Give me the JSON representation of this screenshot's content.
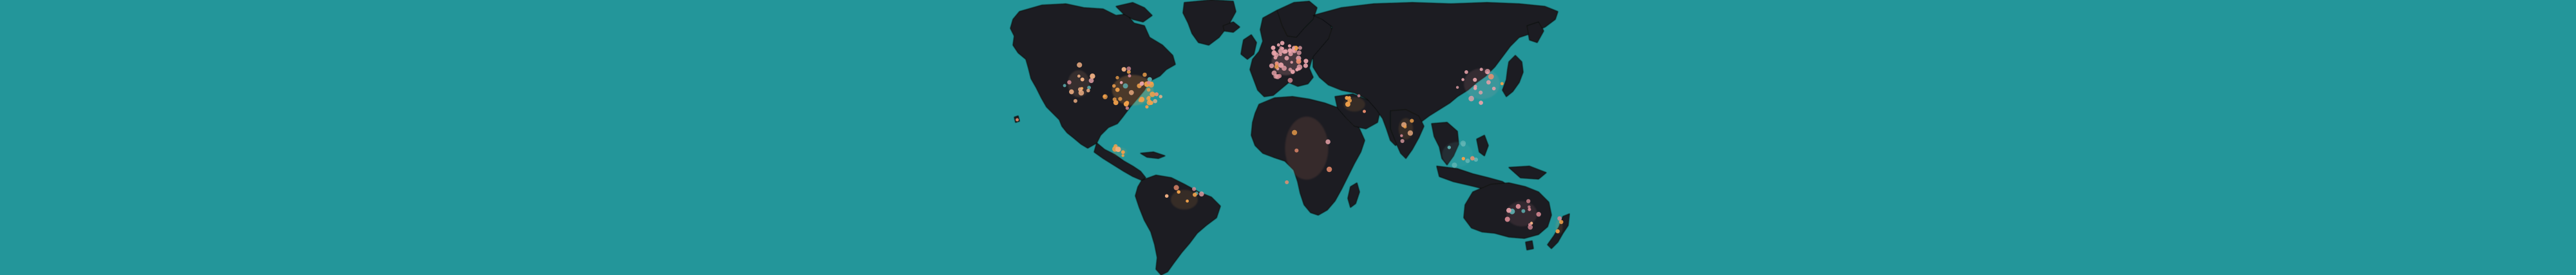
{
  "map": {
    "background_color": "#23969a",
    "land_color": "#1d1f22",
    "marker_colors": {
      "orange": "#f0a04a",
      "peach": "#f2b184",
      "pink": "#e6a1a8",
      "rose": "#d88a94",
      "salmon": "#ee8f6e",
      "teal": "#5fb3b3"
    },
    "regions": [
      "north-america",
      "greenland",
      "south-america",
      "europe",
      "africa",
      "madagascar",
      "asia",
      "japan",
      "southeast-asia",
      "australia",
      "new-zealand"
    ],
    "marker_clusters": [
      {
        "region": "north-america-east",
        "count": 42,
        "dominant_color": "orange"
      },
      {
        "region": "north-america-west",
        "count": 14,
        "dominant_color": "peach"
      },
      {
        "region": "hawaii",
        "count": 1,
        "dominant_color": "salmon"
      },
      {
        "region": "central-america",
        "count": 6,
        "dominant_color": "orange"
      },
      {
        "region": "south-america",
        "count": 8,
        "dominant_color": "orange"
      },
      {
        "region": "europe",
        "count": 48,
        "dominant_color": "pink"
      },
      {
        "region": "africa",
        "count": 5,
        "dominant_color": "salmon"
      },
      {
        "region": "middle-east",
        "count": 6,
        "dominant_color": "orange"
      },
      {
        "region": "india",
        "count": 6,
        "dominant_color": "orange"
      },
      {
        "region": "east-asia",
        "count": 16,
        "dominant_color": "pink"
      },
      {
        "region": "southeast-asia",
        "count": 8,
        "dominant_color": "teal"
      },
      {
        "region": "australia",
        "count": 12,
        "dominant_color": "rose"
      },
      {
        "region": "new-zealand",
        "count": 3,
        "dominant_color": "orange"
      }
    ]
  }
}
